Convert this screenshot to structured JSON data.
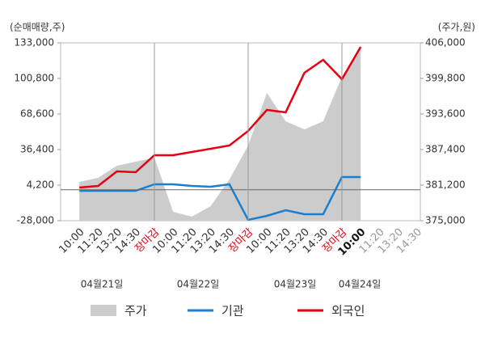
{
  "chart_data": {
    "type": "line",
    "y_label": "(순매매량,주)",
    "y2_label": "(주가,원)",
    "categories": [
      "10:00",
      "11:20",
      "13:20",
      "14:30",
      "장마감",
      "10:00",
      "11:20",
      "13:20",
      "14:30",
      "장마감",
      "10:00",
      "11:20",
      "13:20",
      "14:30",
      "장마감",
      "10:00",
      "11:20",
      "13:20",
      "14:30"
    ],
    "dates": [
      "04월21일",
      "04월22일",
      "04월23일",
      "04월24일"
    ],
    "series": [
      {
        "name": "주가",
        "color": "#cccccc",
        "axis": "y2",
        "kind": "area",
        "values": [
          381760,
          382470,
          384580,
          385290,
          385990,
          376550,
          375700,
          377540,
          382190,
          388100,
          397260,
          392330,
          390920,
          392330,
          400080,
          405010,
          null,
          null,
          null
        ]
      },
      {
        "name": "기관",
        "color": "#1a7fd1",
        "values": [
          -920,
          -920,
          -920,
          -920,
          4930,
          4930,
          3470,
          2740,
          4930,
          -27270,
          -23610,
          -18490,
          -22150,
          -22150,
          11520,
          11520,
          null,
          null,
          null
        ]
      },
      {
        "name": "외국인",
        "color": "#e60012",
        "values": [
          2000,
          3470,
          16640,
          15900,
          31280,
          31280,
          34200,
          37130,
          40060,
          53230,
          72260,
          70060,
          105900,
          117630,
          100060,
          129340,
          null,
          null,
          null
        ]
      }
    ],
    "ylim": [
      -28000,
      133000
    ],
    "yticks": [
      {
        "value": -28000,
        "label": "-28,000"
      },
      {
        "value": 4200,
        "label": "4,200"
      },
      {
        "value": 36400,
        "label": "36,400"
      },
      {
        "value": 68600,
        "label": "68,600"
      },
      {
        "value": 100800,
        "label": "100,800"
      },
      {
        "value": 133000,
        "label": "133,000"
      }
    ],
    "y2lim": [
      375000,
      406000
    ],
    "y2ticks": [
      {
        "value": 375000,
        "label": "375,000"
      },
      {
        "value": 381200,
        "label": "381,200"
      },
      {
        "value": 387400,
        "label": "387,400"
      },
      {
        "value": 393600,
        "label": "393,600"
      },
      {
        "value": 399800,
        "label": "399,800"
      },
      {
        "value": 406000,
        "label": "406,000"
      }
    ]
  }
}
